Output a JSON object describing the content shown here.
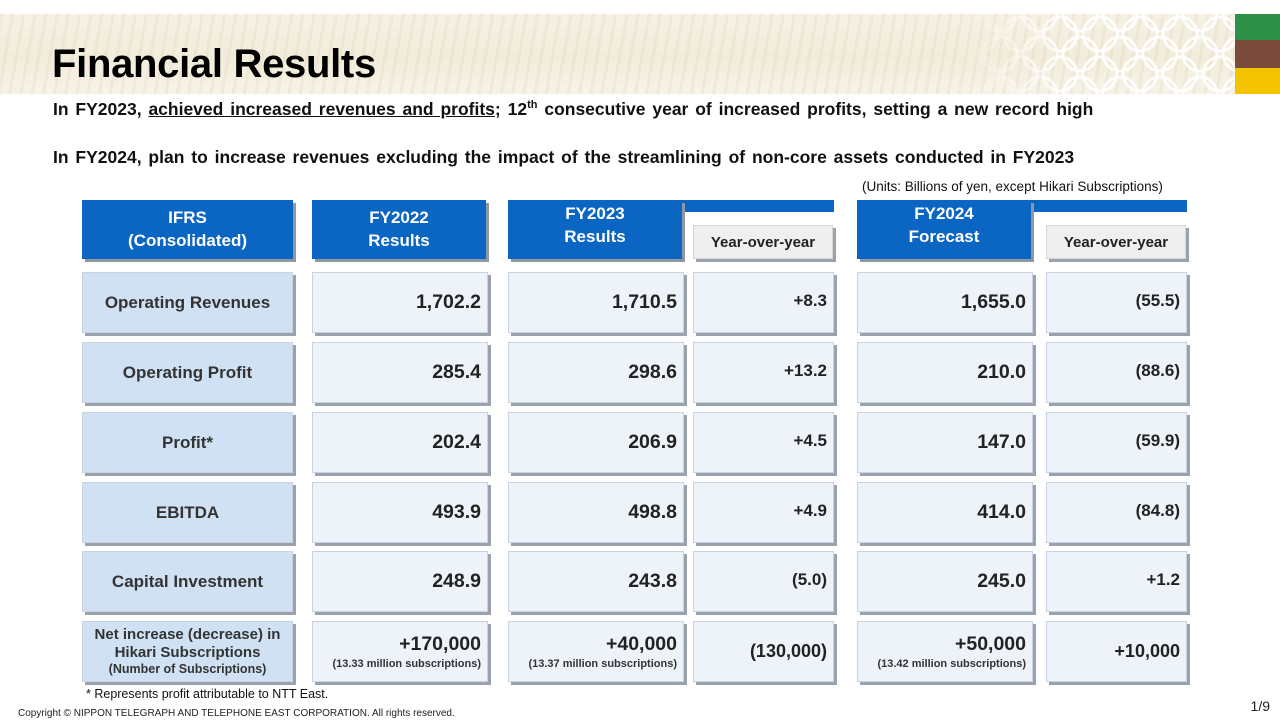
{
  "title": "Financial Results",
  "highlights": {
    "line1_pre": "In FY2023, ",
    "line1_underlined": "achieved increased revenues and profits",
    "line1_mid": "; 12",
    "line1_sup": "th",
    "line1_post": " consecutive year of increased profits, setting a new record high",
    "line2": "In FY2024, plan to increase revenues excluding the impact of the streamlining of non-core assets conducted in FY2023"
  },
  "units_note": "(Units: Billions of yen, except Hikari Subscriptions)",
  "table": {
    "headers": {
      "ifrs": [
        "IFRS",
        "(Consolidated)"
      ],
      "fy2022": [
        "FY2022",
        "Results"
      ],
      "fy2023": [
        "FY2023",
        "Results"
      ],
      "fy2023_yoy": "Year-over-year",
      "fy2024": [
        "FY2024",
        "Forecast"
      ],
      "fy2024_yoy": "Year-over-year"
    },
    "rows": [
      {
        "label": "Operating Revenues",
        "fy2022": "1,702.2",
        "fy2023": "1,710.5",
        "fy2023_yoy": "+8.3",
        "fy2024": "1,655.0",
        "fy2024_yoy": "(55.5)"
      },
      {
        "label": "Operating Profit",
        "fy2022": "285.4",
        "fy2023": "298.6",
        "fy2023_yoy": "+13.2",
        "fy2024": "210.0",
        "fy2024_yoy": "(88.6)"
      },
      {
        "label": "Profit*",
        "fy2022": "202.4",
        "fy2023": "206.9",
        "fy2023_yoy": "+4.5",
        "fy2024": "147.0",
        "fy2024_yoy": "(59.9)"
      },
      {
        "label": "EBITDA",
        "fy2022": "493.9",
        "fy2023": "498.8",
        "fy2023_yoy": "+4.9",
        "fy2024": "414.0",
        "fy2024_yoy": "(84.8)"
      },
      {
        "label": "Capital Investment",
        "fy2022": "248.9",
        "fy2023": "243.8",
        "fy2023_yoy": "(5.0)",
        "fy2024": "245.0",
        "fy2024_yoy": "+1.2"
      }
    ],
    "hikari_row": {
      "label_line1": "Net increase (decrease) in",
      "label_line2": "Hikari Subscriptions",
      "label_line3": "(Number of Subscriptions)",
      "fy2022": "+170,000",
      "fy2022_sub": "(13.33 million subscriptions)",
      "fy2023": "+40,000",
      "fy2023_sub": "(13.37 million subscriptions)",
      "fy2023_yoy": "(130,000)",
      "fy2024": "+50,000",
      "fy2024_sub": "(13.42 million subscriptions)",
      "fy2024_yoy": "+10,000"
    }
  },
  "footnote": "* Represents profit attributable to NTT  East.",
  "copyright": "Copyright  © NIPPON TELEGRAPH AND TELEPHONE EAST CORPORATION. All rights reserved.",
  "page_number": "1/9",
  "colors": {
    "header_blue": "#0a66c2",
    "label_bg": "#d0e1f3",
    "cell_bg": "#eef2f9",
    "accent_green": "#2e8f46",
    "accent_brown": "#7a4a3a",
    "accent_yellow": "#f4c400"
  }
}
